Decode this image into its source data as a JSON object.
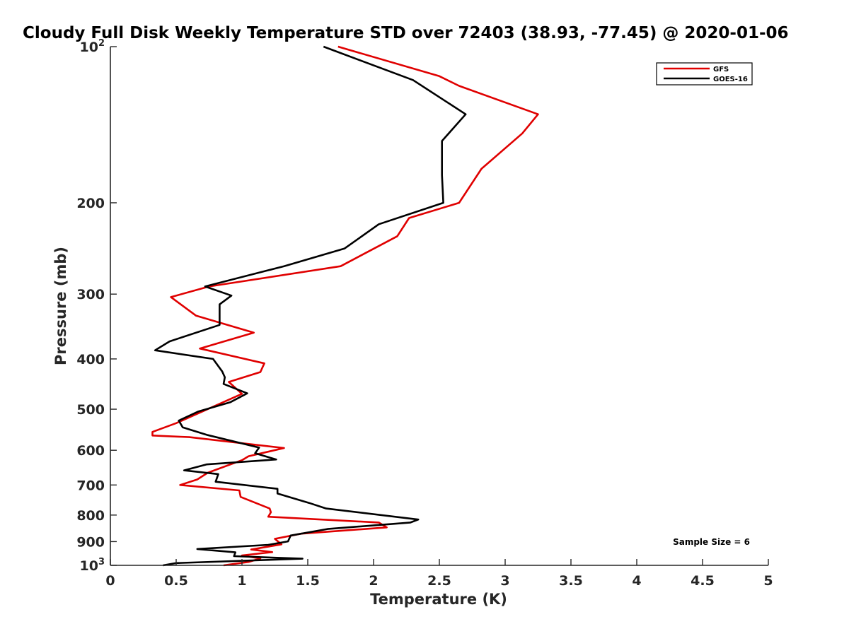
{
  "chart_data": {
    "type": "line",
    "title": "Cloudy Full Disk Weekly Temperature STD over 72403 (38.93, -77.45) @ 2020-01-06",
    "xlabel": "Temperature (K)",
    "ylabel": "Pressure (mb)",
    "xlim": [
      0,
      5
    ],
    "ylim": [
      100,
      1000
    ],
    "y_scale": "log",
    "y_reversed": true,
    "grid": false,
    "legend_position": "top-right",
    "x_ticks": [
      {
        "value": 0,
        "label": "0"
      },
      {
        "value": 0.5,
        "label": "0.5"
      },
      {
        "value": 1,
        "label": "1"
      },
      {
        "value": 1.5,
        "label": "1.5"
      },
      {
        "value": 2,
        "label": "2"
      },
      {
        "value": 2.5,
        "label": "2.5"
      },
      {
        "value": 3,
        "label": "3"
      },
      {
        "value": 3.5,
        "label": "3.5"
      },
      {
        "value": 4,
        "label": "4"
      },
      {
        "value": 4.5,
        "label": "4.5"
      },
      {
        "value": 5,
        "label": "5"
      }
    ],
    "y_ticks": [
      {
        "value": 100,
        "label": "10",
        "sup": "2"
      },
      {
        "value": 200,
        "label": "200",
        "sup": ""
      },
      {
        "value": 300,
        "label": "300",
        "sup": ""
      },
      {
        "value": 400,
        "label": "400",
        "sup": ""
      },
      {
        "value": 500,
        "label": "500",
        "sup": ""
      },
      {
        "value": 600,
        "label": "600",
        "sup": ""
      },
      {
        "value": 700,
        "label": "700",
        "sup": ""
      },
      {
        "value": 800,
        "label": "800",
        "sup": ""
      },
      {
        "value": 900,
        "label": "900",
        "sup": ""
      },
      {
        "value": 1000,
        "label": "10",
        "sup": "3"
      }
    ],
    "series": [
      {
        "name": "GFS",
        "color": "#e00000",
        "points": [
          [
            1.73,
            100
          ],
          [
            2.5,
            114
          ],
          [
            2.65,
            119
          ],
          [
            3.25,
            135
          ],
          [
            3.13,
            147
          ],
          [
            2.82,
            172
          ],
          [
            2.65,
            200
          ],
          [
            2.27,
            214
          ],
          [
            2.18,
            232
          ],
          [
            1.75,
            265
          ],
          [
            0.75,
            290
          ],
          [
            0.46,
            304
          ],
          [
            0.65,
            330
          ],
          [
            1.09,
            356
          ],
          [
            0.68,
            382
          ],
          [
            1.17,
            408
          ],
          [
            1.14,
            424
          ],
          [
            0.9,
            443
          ],
          [
            1.0,
            467
          ],
          [
            0.8,
            492
          ],
          [
            0.5,
            532
          ],
          [
            0.32,
            553
          ],
          [
            0.32,
            562
          ],
          [
            0.6,
            566
          ],
          [
            1.32,
            594
          ],
          [
            1.05,
            616
          ],
          [
            1.0,
            627
          ],
          [
            0.74,
            663
          ],
          [
            0.66,
            683
          ],
          [
            0.53,
            700
          ],
          [
            0.98,
            717
          ],
          [
            0.99,
            738
          ],
          [
            1.21,
            777
          ],
          [
            1.22,
            790
          ],
          [
            1.2,
            806
          ],
          [
            2.04,
            827
          ],
          [
            2.1,
            845
          ],
          [
            1.45,
            869
          ],
          [
            1.25,
            889
          ],
          [
            1.3,
            911
          ],
          [
            1.07,
            932
          ],
          [
            1.23,
            943
          ],
          [
            1.0,
            957
          ],
          [
            1.14,
            970
          ],
          [
            1.05,
            985
          ],
          [
            0.86,
            1000
          ]
        ]
      },
      {
        "name": "GOES-16",
        "color": "#000000",
        "points": [
          [
            1.62,
            100
          ],
          [
            2.3,
            116
          ],
          [
            2.7,
            135
          ],
          [
            2.52,
            152
          ],
          [
            2.52,
            177
          ],
          [
            2.53,
            200
          ],
          [
            2.04,
            220
          ],
          [
            1.78,
            245
          ],
          [
            1.32,
            265
          ],
          [
            0.72,
            290
          ],
          [
            0.92,
            302
          ],
          [
            0.83,
            314
          ],
          [
            0.83,
            344
          ],
          [
            0.45,
            370
          ],
          [
            0.34,
            385
          ],
          [
            0.78,
            400
          ],
          [
            0.85,
            423
          ],
          [
            0.87,
            434
          ],
          [
            0.86,
            447
          ],
          [
            1.04,
            466
          ],
          [
            0.91,
            485
          ],
          [
            0.67,
            505
          ],
          [
            0.52,
            526
          ],
          [
            0.55,
            542
          ],
          [
            0.74,
            561
          ],
          [
            1.13,
            593
          ],
          [
            1.1,
            608
          ],
          [
            1.26,
            625
          ],
          [
            0.73,
            639
          ],
          [
            0.56,
            656
          ],
          [
            0.82,
            667
          ],
          [
            0.8,
            690
          ],
          [
            1.27,
            712
          ],
          [
            1.27,
            727
          ],
          [
            1.51,
            758
          ],
          [
            1.64,
            777
          ],
          [
            2.34,
            816
          ],
          [
            2.28,
            827
          ],
          [
            1.65,
            851
          ],
          [
            1.37,
            876
          ],
          [
            1.35,
            899
          ],
          [
            1.2,
            913
          ],
          [
            0.66,
            930
          ],
          [
            0.95,
            944
          ],
          [
            0.94,
            960
          ],
          [
            1.46,
            971
          ],
          [
            0.5,
            990
          ],
          [
            0.4,
            1000
          ]
        ]
      }
    ],
    "annotation": "Sample Size = 6"
  }
}
